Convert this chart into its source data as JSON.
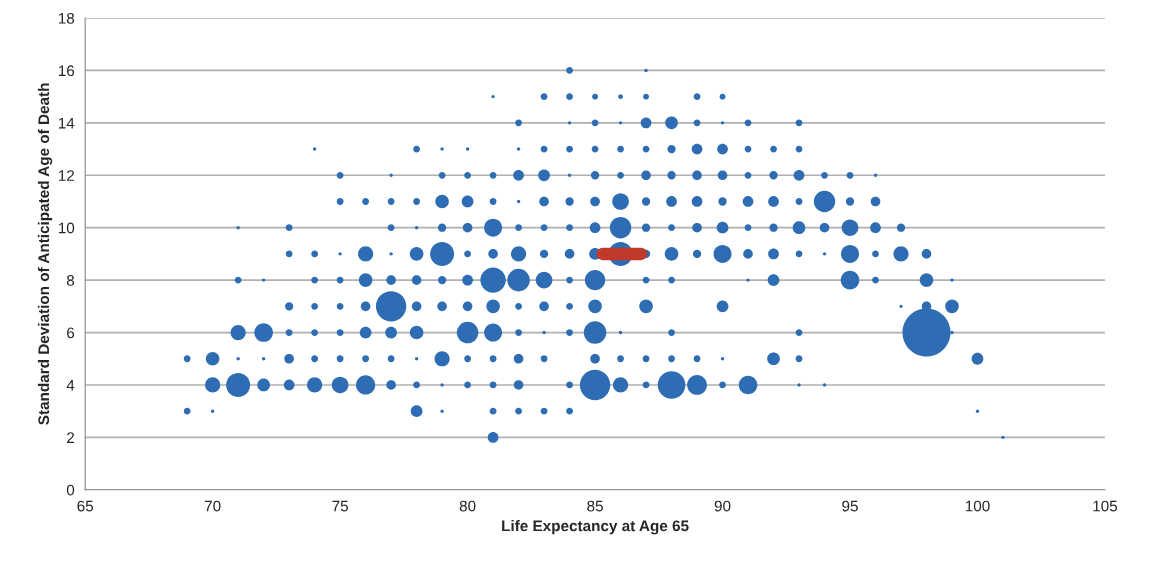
{
  "chart_data": {
    "type": "bubble",
    "xlabel": "Life Expectancy at Age 65",
    "ylabel": "Standard Deviation of Anticipated Age of Death",
    "xlim": [
      65,
      105
    ],
    "xticks": [
      65,
      70,
      75,
      80,
      85,
      90,
      95,
      100,
      105
    ],
    "ylim": [
      0,
      18
    ],
    "yticks": [
      0,
      2,
      4,
      6,
      8,
      10,
      12,
      14,
      16,
      18
    ],
    "grid": "y",
    "series": [
      {
        "color": "#2e6db4",
        "x": [
          84,
          87
        ],
        "values": [
          16,
          16
        ],
        "sizes": [
          0.02,
          0.005
        ]
      },
      {
        "color": "#2e6db4",
        "x": [
          81,
          83,
          84,
          85,
          86,
          87,
          89,
          90
        ],
        "values": [
          15,
          15,
          15,
          15,
          15,
          15,
          15,
          15
        ],
        "sizes": [
          0.005,
          0.02,
          0.02,
          0.015,
          0.01,
          0.015,
          0.02,
          0.015
        ]
      },
      {
        "color": "#2e6db4",
        "x": [
          82,
          84,
          85,
          86,
          87,
          88,
          89,
          90,
          91,
          93
        ],
        "values": [
          14,
          14,
          14,
          14,
          14,
          14,
          14,
          14,
          14,
          14
        ],
        "sizes": [
          0.02,
          0.005,
          0.02,
          0.005,
          0.05,
          0.07,
          0.02,
          0.005,
          0.02,
          0.02
        ]
      },
      {
        "color": "#2e6db4",
        "x": [
          74,
          78,
          79,
          80,
          82,
          83,
          84,
          85,
          86,
          87,
          88,
          89,
          90,
          91,
          92,
          93
        ],
        "values": [
          13,
          13,
          13,
          13,
          13,
          13,
          13,
          13,
          13,
          13,
          13,
          13,
          13,
          13,
          13,
          13
        ],
        "sizes": [
          0.005,
          0.02,
          0.005,
          0.005,
          0.005,
          0.02,
          0.02,
          0.02,
          0.02,
          0.02,
          0.03,
          0.05,
          0.05,
          0.02,
          0.02,
          0.02
        ]
      },
      {
        "color": "#2e6db4",
        "x": [
          75,
          77,
          79,
          80,
          81,
          82,
          83,
          84,
          85,
          86,
          87,
          88,
          89,
          90,
          91,
          92,
          93,
          94,
          95,
          96
        ],
        "values": [
          12,
          12,
          12,
          12,
          12,
          12,
          12,
          12,
          12,
          12,
          12,
          12,
          12,
          12,
          12,
          12,
          12,
          12,
          12,
          12
        ],
        "sizes": [
          0.02,
          0.005,
          0.02,
          0.02,
          0.02,
          0.05,
          0.06,
          0.005,
          0.03,
          0.02,
          0.04,
          0.03,
          0.04,
          0.04,
          0.02,
          0.03,
          0.05,
          0.02,
          0.02,
          0.005
        ]
      },
      {
        "color": "#2e6db4",
        "x": [
          75,
          76,
          77,
          78,
          79,
          80,
          81,
          82,
          83,
          84,
          85,
          86,
          87,
          88,
          89,
          90,
          91,
          92,
          93,
          94,
          95,
          96
        ],
        "values": [
          11,
          11,
          11,
          11,
          11,
          11,
          11,
          11,
          11,
          11,
          11,
          11,
          11,
          11,
          11,
          11,
          11,
          11,
          11,
          11,
          11,
          11
        ],
        "sizes": [
          0.02,
          0.02,
          0.02,
          0.02,
          0.08,
          0.06,
          0.02,
          0.005,
          0.04,
          0.03,
          0.04,
          0.12,
          0.03,
          0.05,
          0.05,
          0.03,
          0.05,
          0.05,
          0.02,
          0.2,
          0.03,
          0.04
        ]
      },
      {
        "color": "#2e6db4",
        "x": [
          71,
          73,
          77,
          78,
          79,
          80,
          81,
          82,
          83,
          84,
          85,
          86,
          87,
          88,
          89,
          90,
          91,
          92,
          93,
          94,
          95,
          96,
          97
        ],
        "values": [
          10,
          10,
          10,
          10,
          10,
          10,
          10,
          10,
          10,
          10,
          10,
          10,
          10,
          10,
          10,
          10,
          10,
          10,
          10,
          10,
          10,
          10,
          10
        ],
        "sizes": [
          0.005,
          0.02,
          0.02,
          0.005,
          0.03,
          0.04,
          0.14,
          0.02,
          0.02,
          0.02,
          0.05,
          0.2,
          0.03,
          0.02,
          0.04,
          0.06,
          0.02,
          0.03,
          0.07,
          0.04,
          0.12,
          0.05,
          0.03
        ]
      },
      {
        "color": "#2e6db4",
        "x": [
          73,
          74,
          75,
          76,
          77,
          78,
          79,
          80,
          81,
          82,
          83,
          84,
          85,
          86,
          87,
          88,
          89,
          90,
          91,
          92,
          93,
          94,
          95,
          96,
          97,
          98
        ],
        "values": [
          9,
          9,
          9,
          9,
          9,
          9,
          9,
          9,
          9,
          9,
          9,
          9,
          9,
          9,
          9,
          9,
          9,
          9,
          9,
          9,
          9,
          9,
          9,
          9,
          9,
          9
        ],
        "sizes": [
          0.02,
          0.02,
          0.005,
          0.1,
          0.005,
          0.08,
          0.25,
          0.02,
          0.04,
          0.1,
          0.03,
          0.04,
          0.06,
          0.25,
          0.03,
          0.08,
          0.03,
          0.14,
          0.04,
          0.05,
          0.02,
          0.005,
          0.14,
          0.02,
          0.1,
          0.04
        ]
      },
      {
        "color": "#2e6db4",
        "x": [
          71,
          72,
          74,
          75,
          76,
          77,
          78,
          79,
          80,
          81,
          82,
          83,
          84,
          85,
          87,
          88,
          91,
          92,
          95,
          96,
          98,
          99
        ],
        "values": [
          8,
          8,
          8,
          8,
          8,
          8,
          8,
          8,
          8,
          8,
          8,
          8,
          8,
          8,
          8,
          8,
          8,
          8,
          8,
          8,
          8,
          8
        ],
        "sizes": [
          0.02,
          0.005,
          0.02,
          0.02,
          0.08,
          0.04,
          0.04,
          0.03,
          0.05,
          0.28,
          0.22,
          0.12,
          0.02,
          0.18,
          0.02,
          0.02,
          0.005,
          0.06,
          0.15,
          0.02,
          0.08,
          0.005
        ]
      },
      {
        "color": "#2e6db4",
        "x": [
          73,
          74,
          75,
          76,
          77,
          78,
          79,
          80,
          81,
          82,
          83,
          84,
          85,
          87,
          90,
          97,
          98,
          99
        ],
        "values": [
          7,
          7,
          7,
          7,
          7,
          7,
          7,
          7,
          7,
          7,
          7,
          7,
          7,
          7,
          7,
          7,
          7,
          7
        ],
        "sizes": [
          0.03,
          0.02,
          0.02,
          0.04,
          0.4,
          0.04,
          0.04,
          0.04,
          0.08,
          0.02,
          0.04,
          0.02,
          0.08,
          0.08,
          0.06,
          0.005,
          0.04,
          0.08
        ]
      },
      {
        "color": "#2e6db4",
        "x": [
          71,
          72,
          73,
          74,
          75,
          76,
          77,
          78,
          80,
          81,
          82,
          83,
          84,
          85,
          86,
          88,
          93,
          98,
          99
        ],
        "values": [
          6,
          6,
          6,
          6,
          6,
          6,
          6,
          6,
          6,
          6,
          6,
          6,
          6,
          6,
          6,
          6,
          6,
          6,
          6
        ],
        "sizes": [
          0.1,
          0.15,
          0.02,
          0.02,
          0.02,
          0.06,
          0.06,
          0.08,
          0.2,
          0.14,
          0.02,
          0.005,
          0.02,
          0.22,
          0.005,
          0.02,
          0.02,
          1,
          0.005
        ]
      },
      {
        "color": "#2e6db4",
        "x": [
          69,
          70,
          71,
          72,
          73,
          74,
          75,
          76,
          77,
          78,
          79,
          80,
          81,
          82,
          83,
          85,
          86,
          87,
          88,
          89,
          90,
          92,
          93,
          100
        ],
        "values": [
          5,
          5,
          5,
          5,
          5,
          5,
          5,
          5,
          5,
          5,
          5,
          5,
          5,
          5,
          5,
          5,
          5,
          5,
          5,
          5,
          5,
          5,
          5,
          5
        ],
        "sizes": [
          0.02,
          0.08,
          0.005,
          0.005,
          0.04,
          0.02,
          0.02,
          0.02,
          0.02,
          0.005,
          0.1,
          0.02,
          0.02,
          0.04,
          0.02,
          0.04,
          0.02,
          0.02,
          0.02,
          0.02,
          0.005,
          0.07,
          0.02,
          0.06
        ]
      },
      {
        "color": "#2e6db4",
        "x": [
          70,
          71,
          72,
          73,
          74,
          75,
          76,
          77,
          78,
          79,
          80,
          81,
          82,
          84,
          85,
          86,
          87,
          88,
          89,
          90,
          91,
          93,
          94
        ],
        "values": [
          4,
          4,
          4,
          4,
          4,
          4,
          4,
          4,
          4,
          4,
          4,
          4,
          4,
          4,
          4,
          4,
          4,
          4,
          4,
          4,
          4,
          4,
          4
        ],
        "sizes": [
          0.1,
          0.25,
          0.07,
          0.05,
          0.1,
          0.12,
          0.16,
          0.04,
          0.02,
          0.005,
          0.02,
          0.02,
          0.04,
          0.02,
          0.4,
          0.1,
          0.02,
          0.33,
          0.17,
          0.02,
          0.15,
          0.005,
          0.005
        ]
      },
      {
        "color": "#2e6db4",
        "x": [
          69,
          70,
          78,
          79,
          81,
          82,
          83,
          84,
          100
        ],
        "values": [
          3,
          3,
          3,
          3,
          3,
          3,
          3,
          3,
          3
        ],
        "sizes": [
          0.02,
          0.005,
          0.06,
          0.005,
          0.02,
          0.02,
          0.02,
          0.02,
          0.005
        ]
      },
      {
        "color": "#2e6db4",
        "x": [
          81,
          101
        ],
        "values": [
          2,
          2
        ],
        "sizes": [
          0.05,
          0.005
        ]
      },
      {
        "type": "line",
        "color": "#c0392b",
        "x": [
          85.3,
          86.8
        ],
        "values": [
          9,
          9
        ]
      }
    ]
  }
}
